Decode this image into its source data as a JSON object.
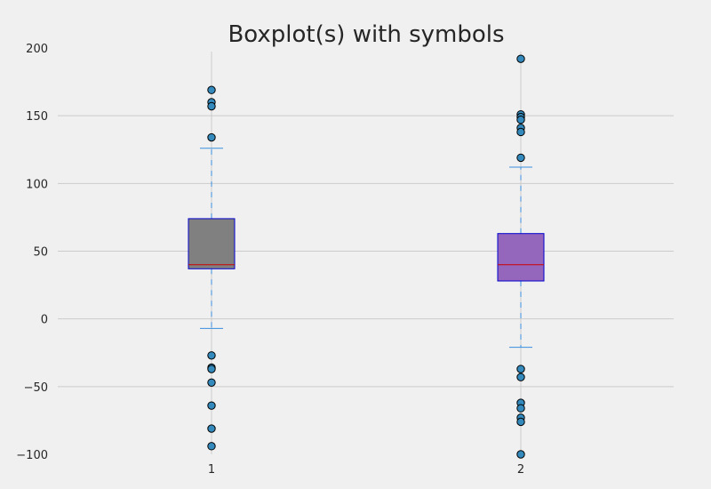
{
  "chart_data": {
    "type": "boxplot",
    "title": "Boxplot(s) with symbols",
    "xlabel": "",
    "ylabel": "",
    "ylim": [
      -100,
      200
    ],
    "yticks": [
      -100,
      -50,
      0,
      50,
      100,
      150,
      200
    ],
    "ytick_labels": [
      "−100",
      "−50",
      "0",
      "50",
      "100",
      "150",
      "200"
    ],
    "categories": [
      "1",
      "2"
    ],
    "grid": true,
    "colors": {
      "background": "#f0f0f0",
      "grid": "#cbcbcb",
      "box_edge": "#0000cc",
      "median": "#cc0000",
      "whisker": "#3a8ede",
      "flier": "#348abd"
    },
    "series": [
      {
        "box_color": "#808080",
        "q1": 37,
        "median": 40,
        "q3": 74,
        "whisker_low": -7,
        "whisker_high": 126,
        "fliers": [
          169,
          160,
          157,
          134,
          -27,
          -36,
          -37,
          -47,
          -64,
          -81,
          -94
        ]
      },
      {
        "box_color": "#9467bd",
        "q1": 28,
        "median": 40,
        "q3": 63,
        "whisker_low": -21,
        "whisker_high": 112,
        "fliers": [
          192,
          151,
          149,
          147,
          141,
          138,
          119,
          -37,
          -43,
          -62,
          -66,
          -73,
          -76,
          -100
        ]
      }
    ]
  }
}
